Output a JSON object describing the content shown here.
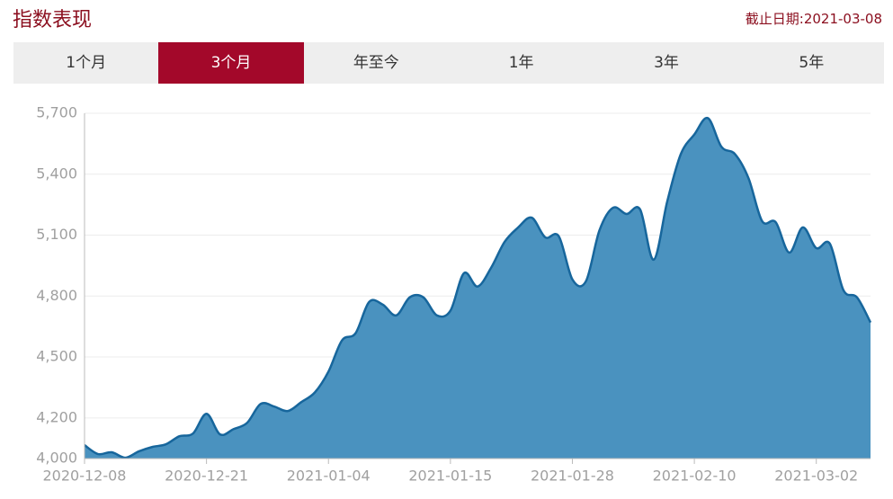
{
  "header": {
    "title": "指数表现",
    "date": "截止日期:2021-03-08"
  },
  "tabs": [
    {
      "label": "1个月",
      "active": false
    },
    {
      "label": "3个月",
      "active": true
    },
    {
      "label": "年至今",
      "active": false
    },
    {
      "label": "1年",
      "active": false
    },
    {
      "label": "3年",
      "active": false
    },
    {
      "label": "5年",
      "active": false
    }
  ],
  "chart_data": {
    "type": "area",
    "color": "#4a92bf",
    "line_color": "#17669c",
    "grid": true,
    "categories": [
      "2020-12-08",
      null,
      null,
      null,
      null,
      null,
      null,
      null,
      null,
      "2020-12-21",
      null,
      null,
      null,
      null,
      null,
      null,
      null,
      null,
      "2021-01-04",
      null,
      null,
      null,
      null,
      null,
      null,
      null,
      null,
      "2021-01-15",
      null,
      null,
      null,
      null,
      null,
      null,
      null,
      null,
      "2021-01-28",
      null,
      null,
      null,
      null,
      null,
      null,
      null,
      null,
      "2021-02-10",
      null,
      null,
      null,
      null,
      null,
      null,
      null,
      null,
      "2021-03-02",
      null,
      null,
      null,
      null
    ],
    "values": [
      4066,
      4022,
      4031,
      4004,
      4035,
      4057,
      4070,
      4110,
      4123,
      4220,
      4119,
      4145,
      4176,
      4269,
      4256,
      4234,
      4278,
      4326,
      4428,
      4582,
      4617,
      4771,
      4758,
      4705,
      4794,
      4794,
      4705,
      4728,
      4913,
      4847,
      4939,
      5067,
      5138,
      5186,
      5089,
      5094,
      4882,
      4873,
      5124,
      5235,
      5204,
      5226,
      4979,
      5266,
      5499,
      5596,
      5676,
      5535,
      5499,
      5380,
      5169,
      5164,
      5014,
      5138,
      5036,
      5058,
      4829,
      4794,
      4670
    ],
    "ylim": [
      4000,
      5700
    ],
    "yticks": [
      {
        "value": 4000,
        "label": "4,000"
      },
      {
        "value": 4200,
        "label": "4,200"
      },
      {
        "value": 4500,
        "label": "4,500"
      },
      {
        "value": 4800,
        "label": "4,800"
      },
      {
        "value": 5100,
        "label": "5,100"
      },
      {
        "value": 5400,
        "label": "5,400"
      },
      {
        "value": 5700,
        "label": "5,700"
      }
    ]
  }
}
